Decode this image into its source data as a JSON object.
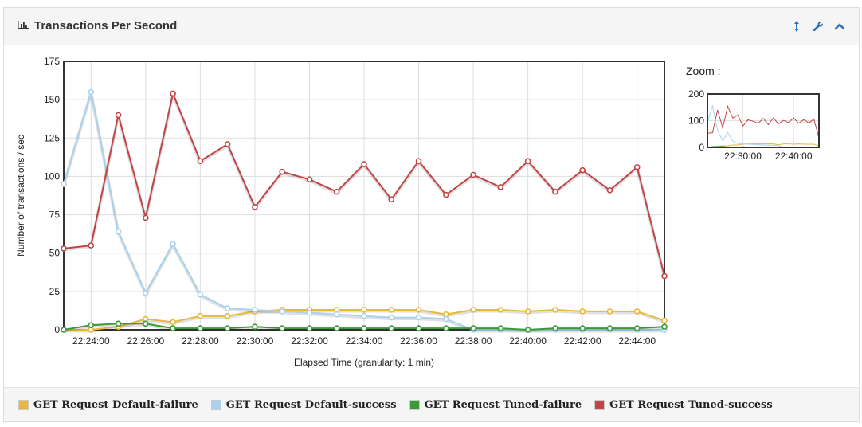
{
  "panel": {
    "title": "Transactions Per Second"
  },
  "tools": {
    "resize": "resize-vertical-icon",
    "settings": "wrench-icon",
    "collapse": "chevron-up-icon"
  },
  "zoom": {
    "label": "Zoom :"
  },
  "colors": {
    "default_failure": "#e8b83a",
    "default_success": "#a8d2ee",
    "tuned_failure": "#3a9a3a",
    "tuned_success": "#c24545"
  },
  "chart_data": {
    "type": "line",
    "xlabel": "Elapsed Time (granularity: 1 min)",
    "ylabel": "Number of transactions / sec",
    "ylim": [
      0,
      175
    ],
    "yticks": [
      0,
      25,
      50,
      75,
      100,
      125,
      150,
      175
    ],
    "xticks": [
      "22:24:00",
      "22:26:00",
      "22:28:00",
      "22:30:00",
      "22:32:00",
      "22:34:00",
      "22:36:00",
      "22:38:00",
      "22:40:00",
      "22:42:00",
      "22:44:00"
    ],
    "x": [
      "22:23:00",
      "22:24:00",
      "22:25:00",
      "22:26:00",
      "22:27:00",
      "22:28:00",
      "22:29:00",
      "22:30:00",
      "22:31:00",
      "22:32:00",
      "22:33:00",
      "22:34:00",
      "22:35:00",
      "22:36:00",
      "22:37:00",
      "22:38:00",
      "22:39:00",
      "22:40:00",
      "22:41:00",
      "22:42:00",
      "22:43:00",
      "22:44:00",
      "22:45:00"
    ],
    "grid": true,
    "series": [
      {
        "name": "GET Request Default-failure",
        "color": "#e8b83a",
        "values": [
          0,
          0,
          2,
          7,
          5,
          9,
          9,
          12,
          13,
          13,
          13,
          13,
          13,
          13,
          10,
          13,
          13,
          12,
          13,
          12,
          12,
          12,
          6
        ]
      },
      {
        "name": "GET Request Default-success",
        "color": "#a8d2ee",
        "values": [
          95,
          155,
          64,
          24,
          56,
          23,
          14,
          13,
          12,
          11,
          10,
          9,
          8,
          8,
          7,
          0,
          0,
          0,
          0,
          0,
          0,
          0,
          0
        ]
      },
      {
        "name": "GET Request Tuned-failure",
        "color": "#3a9a3a",
        "values": [
          0,
          3,
          4,
          4,
          1,
          1,
          1,
          2,
          1,
          1,
          1,
          1,
          1,
          1,
          1,
          1,
          1,
          0,
          1,
          1,
          1,
          1,
          2
        ]
      },
      {
        "name": "GET Request Tuned-success",
        "color": "#c24545",
        "values": [
          53,
          55,
          140,
          73,
          154,
          110,
          121,
          80,
          103,
          98,
          90,
          108,
          85,
          110,
          88,
          101,
          93,
          110,
          90,
          104,
          91,
          106,
          35
        ]
      }
    ]
  },
  "zoom_chart": {
    "yticks": [
      0,
      100,
      200
    ],
    "xticks": [
      "22:30:00",
      "22:40:00"
    ]
  }
}
